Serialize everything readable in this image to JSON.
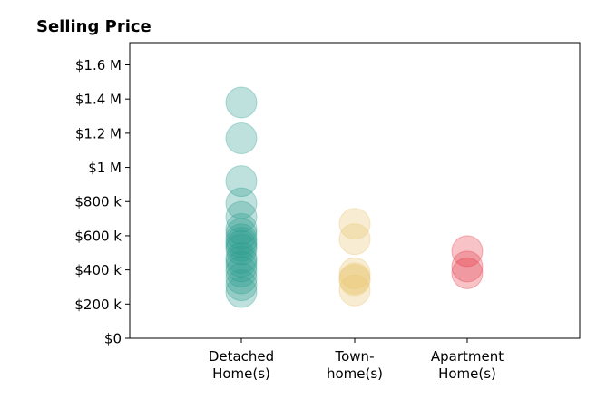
{
  "chart_data": {
    "type": "scatter",
    "title": "Selling Price",
    "xlabel": "",
    "ylabel": "",
    "categories": [
      [
        "Detached",
        "Home(s)"
      ],
      [
        "Town-",
        "home(s)"
      ],
      [
        "Apartment",
        "Home(s)"
      ]
    ],
    "ylim": [
      0,
      1730000
    ],
    "y_ticks": [
      0,
      200000,
      400000,
      600000,
      800000,
      1000000,
      1200000,
      1400000,
      1600000
    ],
    "y_tick_labels": [
      "$0",
      "$200 k",
      "$400 k",
      "$600 k",
      "$800 k",
      "$1 M",
      "$1.2 M",
      "$1.4 M",
      "$1.6 M"
    ],
    "grid": false,
    "legend": "none",
    "series": [
      {
        "category_index": 0,
        "color": "#2a9d8f",
        "values": [
          1380000,
          1170000,
          920000,
          790000,
          710000,
          640000,
          610000,
          580000,
          560000,
          540000,
          520000,
          470000,
          450000,
          420000,
          390000,
          350000,
          310000,
          270000
        ]
      },
      {
        "category_index": 1,
        "color": "#e9c46a",
        "values": [
          670000,
          580000,
          380000,
          350000,
          340000,
          280000
        ]
      },
      {
        "category_index": 2,
        "color": "#e63946",
        "values": [
          510000,
          420000,
          380000
        ]
      }
    ]
  }
}
